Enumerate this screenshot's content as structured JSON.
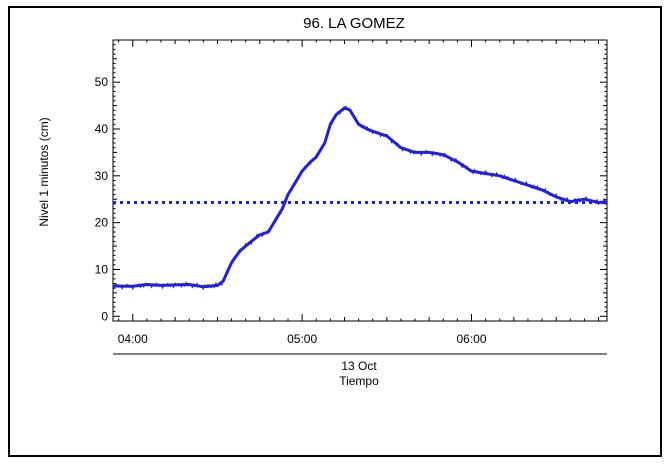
{
  "chart_data": {
    "type": "line",
    "title": "96. LA GOMEZ",
    "ylabel": "Nivel 1 minutos (cm)",
    "date_label": "13 Oct",
    "xlabel": "Tiempo",
    "xlim": [
      "03:53",
      "06:48"
    ],
    "ylim": [
      -1,
      59
    ],
    "x_ticks": [
      "04:00",
      "05:00",
      "06:00"
    ],
    "y_ticks": [
      0,
      10,
      20,
      30,
      40,
      50
    ],
    "grid": false,
    "line_color": "#2020e0",
    "reference_level": 24.3,
    "series": [
      {
        "x": [
          "03:53",
          "04:00",
          "04:05",
          "04:10",
          "04:15",
          "04:20",
          "04:25",
          "04:30",
          "04:32",
          "04:35",
          "04:38",
          "04:42",
          "04:45",
          "04:48",
          "04:50",
          "04:53",
          "04:55",
          "04:57",
          "05:00",
          "05:03",
          "05:05",
          "05:08",
          "05:10",
          "05:12",
          "05:15",
          "05:17",
          "05:20",
          "05:23",
          "05:25",
          "05:30",
          "05:35",
          "05:40",
          "05:45",
          "05:50",
          "05:55",
          "06:00",
          "06:05",
          "06:10",
          "06:15",
          "06:20",
          "06:25",
          "06:30",
          "06:35",
          "06:40",
          "06:45",
          "06:48"
        ],
        "y": [
          6.5,
          6.4,
          6.8,
          6.6,
          6.7,
          6.8,
          6.3,
          6.6,
          7.5,
          11.5,
          14,
          16,
          17.4,
          18,
          20,
          23,
          26,
          28,
          31,
          33,
          34,
          37,
          41,
          43,
          44.5,
          44,
          41,
          40,
          39.5,
          38.5,
          36,
          35,
          35,
          34.5,
          33,
          31,
          30.5,
          30,
          29,
          28,
          27,
          25.5,
          24.5,
          25,
          24.3,
          24.5
        ]
      }
    ]
  }
}
